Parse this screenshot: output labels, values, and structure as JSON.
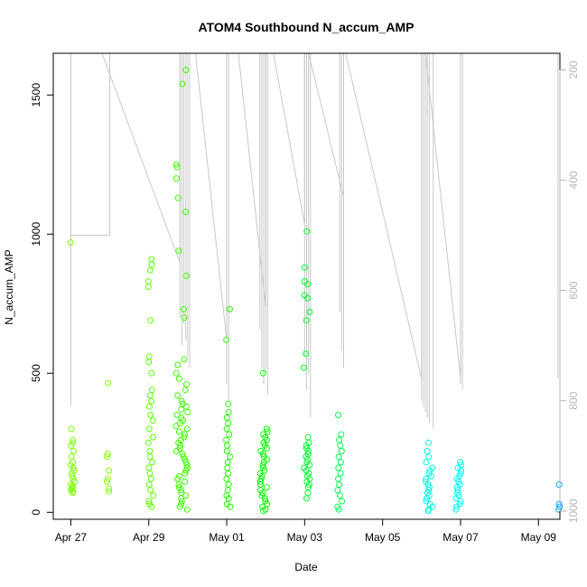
{
  "chart_data": {
    "type": "scatter",
    "title": "ATOM4 Southbound N_accum_AMP",
    "xlabel": "Date",
    "ylabel": "N_accum_AMP",
    "x_unit": "days since Apr 27",
    "xlim": [
      -0.45,
      12.55
    ],
    "ylim": [
      -25,
      1650
    ],
    "y_ticks": [
      0,
      500,
      1000,
      1500
    ],
    "x_ticks": [
      {
        "value": 0,
        "label": "Apr 27"
      },
      {
        "value": 2,
        "label": "Apr 29"
      },
      {
        "value": 4,
        "label": "May 01"
      },
      {
        "value": 6,
        "label": "May 03"
      },
      {
        "value": 8,
        "label": "May 05"
      },
      {
        "value": 10,
        "label": "May 07"
      },
      {
        "value": 12,
        "label": "May 09"
      }
    ],
    "secondary_axis": {
      "ylim": [
        1015,
        170
      ],
      "reversed": true,
      "ticks": [
        200,
        400,
        600,
        800,
        1000
      ],
      "color": "#b5b5b5"
    },
    "clusters": [
      {
        "x": 0.05,
        "spread": 0.06,
        "color": "#7fff00",
        "values": [
          70,
          75,
          80,
          85,
          90,
          95,
          100,
          110,
          120,
          130,
          140,
          150,
          160,
          170,
          180,
          200,
          220,
          240,
          250,
          260,
          300,
          970
        ]
      },
      {
        "x": 0.95,
        "spread": 0.03,
        "color": "#7fff00",
        "values": [
          75,
          85,
          110,
          120,
          150,
          200,
          210,
          465
        ]
      },
      {
        "x": 2.05,
        "spread": 0.07,
        "color": "#5cff00",
        "values": [
          20,
          30,
          40,
          60,
          80,
          100,
          120,
          140,
          160,
          180,
          200,
          220,
          250,
          270,
          300,
          330,
          350,
          380,
          400,
          420,
          440,
          500,
          540,
          560,
          690,
          810,
          830,
          870,
          890,
          910
        ]
      },
      {
        "x": 2.85,
        "spread": 0.15,
        "color": "#3dff00",
        "values": [
          10,
          20,
          30,
          40,
          50,
          60,
          70,
          80,
          90,
          100,
          110,
          120,
          130,
          140,
          150,
          160,
          170,
          180,
          190,
          200,
          210,
          220,
          230,
          240,
          250,
          260,
          270,
          280,
          290,
          300,
          310,
          320,
          330,
          340,
          350,
          360,
          370,
          380,
          390,
          400,
          420,
          440,
          460,
          480,
          500,
          530,
          550,
          700,
          730,
          850,
          940,
          1080,
          1130,
          1200,
          1240,
          1250,
          1540,
          1590
        ]
      },
      {
        "x": 4.05,
        "spread": 0.06,
        "color": "#21ff00",
        "values": [
          20,
          30,
          50,
          60,
          80,
          100,
          120,
          140,
          160,
          180,
          200,
          220,
          240,
          260,
          280,
          300,
          320,
          340,
          360,
          390,
          620,
          730
        ]
      },
      {
        "x": 4.95,
        "spread": 0.1,
        "color": "#05ff00",
        "values": [
          5,
          10,
          20,
          30,
          40,
          50,
          60,
          70,
          80,
          90,
          100,
          110,
          120,
          130,
          140,
          150,
          160,
          170,
          180,
          190,
          200,
          210,
          220,
          230,
          240,
          250,
          260,
          270,
          280,
          290,
          300,
          500
        ]
      },
      {
        "x": 6.05,
        "spread": 0.08,
        "color": "#00ff2a",
        "values": [
          50,
          70,
          90,
          100,
          110,
          120,
          130,
          140,
          150,
          160,
          170,
          180,
          190,
          200,
          210,
          220,
          230,
          240,
          250,
          270,
          520,
          570,
          690,
          720,
          770,
          780,
          820,
          830,
          880,
          1010
        ]
      },
      {
        "x": 6.9,
        "spread": 0.06,
        "color": "#00ff4f",
        "values": [
          10,
          20,
          40,
          60,
          80,
          100,
          120,
          140,
          160,
          180,
          200,
          220,
          240,
          260,
          280,
          350
        ]
      },
      {
        "x": 9.2,
        "spread": 0.1,
        "color": "#00ffe5",
        "values": [
          5,
          10,
          20,
          30,
          40,
          50,
          60,
          70,
          80,
          90,
          100,
          110,
          120,
          130,
          140,
          150,
          160,
          180,
          200,
          220,
          250
        ]
      },
      {
        "x": 9.95,
        "spread": 0.07,
        "color": "#00fff2",
        "values": [
          10,
          20,
          30,
          40,
          50,
          60,
          70,
          80,
          90,
          100,
          110,
          120,
          130,
          140,
          150,
          160,
          170,
          180
        ]
      },
      {
        "x": 12.6,
        "spread": 0.1,
        "color": "#00aaff",
        "values": [
          5,
          10,
          20,
          30,
          40,
          50,
          60,
          70,
          80,
          90,
          100,
          110,
          120,
          130,
          140,
          150
        ]
      }
    ],
    "secondary_series": {
      "color": "#c8c8c8",
      "polyline": [
        [
          0.0,
          170
        ],
        [
          0.0,
          500
        ],
        [
          1.0,
          500
        ],
        [
          1.0,
          170
        ],
        [
          0.8,
          170
        ],
        [
          2.8,
          550
        ],
        [
          2.8,
          170
        ],
        [
          3.2,
          170
        ],
        [
          4.0,
          690
        ],
        [
          4.0,
          170
        ],
        [
          4.3,
          170
        ],
        [
          5.0,
          630
        ],
        [
          5.0,
          170
        ],
        [
          5.2,
          170
        ],
        [
          6.0,
          480
        ],
        [
          6.0,
          170
        ],
        [
          6.1,
          170
        ],
        [
          7.0,
          430
        ],
        [
          7.0,
          170
        ],
        [
          7.05,
          170
        ],
        [
          9.0,
          760
        ],
        [
          9.0,
          170
        ],
        [
          9.1,
          170
        ],
        [
          10.0,
          760
        ],
        [
          10.0,
          170
        ],
        [
          10.05,
          170
        ]
      ],
      "spikes": [
        {
          "x": 0.0,
          "top": 170,
          "bottom": 810
        },
        {
          "x": 2.8,
          "top": 170,
          "bottom": 650
        },
        {
          "x": 2.85,
          "top": 170,
          "bottom": 700
        },
        {
          "x": 2.9,
          "top": 170,
          "bottom": 660
        },
        {
          "x": 2.95,
          "top": 170,
          "bottom": 690
        },
        {
          "x": 3.0,
          "top": 170,
          "bottom": 720
        },
        {
          "x": 3.05,
          "top": 170,
          "bottom": 740
        },
        {
          "x": 4.0,
          "top": 170,
          "bottom": 770
        },
        {
          "x": 4.05,
          "top": 170,
          "bottom": 800
        },
        {
          "x": 4.85,
          "top": 170,
          "bottom": 670
        },
        {
          "x": 4.9,
          "top": 170,
          "bottom": 740
        },
        {
          "x": 4.95,
          "top": 170,
          "bottom": 770
        },
        {
          "x": 5.0,
          "top": 170,
          "bottom": 750
        },
        {
          "x": 5.05,
          "top": 170,
          "bottom": 790
        },
        {
          "x": 6.0,
          "top": 170,
          "bottom": 720
        },
        {
          "x": 6.05,
          "top": 170,
          "bottom": 780
        },
        {
          "x": 6.1,
          "top": 170,
          "bottom": 750
        },
        {
          "x": 6.15,
          "top": 170,
          "bottom": 830
        },
        {
          "x": 6.9,
          "top": 170,
          "bottom": 640
        },
        {
          "x": 6.95,
          "top": 170,
          "bottom": 710
        },
        {
          "x": 7.0,
          "top": 170,
          "bottom": 740
        },
        {
          "x": 9.0,
          "top": 170,
          "bottom": 800
        },
        {
          "x": 9.05,
          "top": 170,
          "bottom": 810
        },
        {
          "x": 9.1,
          "top": 170,
          "bottom": 820
        },
        {
          "x": 9.15,
          "top": 170,
          "bottom": 830
        },
        {
          "x": 9.2,
          "top": 170,
          "bottom": 840
        },
        {
          "x": 9.3,
          "top": 170,
          "bottom": 850
        },
        {
          "x": 10.0,
          "top": 170,
          "bottom": 770
        },
        {
          "x": 10.05,
          "top": 170,
          "bottom": 780
        },
        {
          "x": 12.5,
          "top": 170,
          "bottom": 760
        },
        {
          "x": 12.55,
          "top": 170,
          "bottom": 770
        },
        {
          "x": 12.6,
          "top": 170,
          "bottom": 780
        },
        {
          "x": 12.65,
          "top": 170,
          "bottom": 790
        },
        {
          "x": 12.7,
          "top": 170,
          "bottom": 800
        },
        {
          "x": 12.75,
          "top": 170,
          "bottom": 720
        }
      ]
    }
  }
}
